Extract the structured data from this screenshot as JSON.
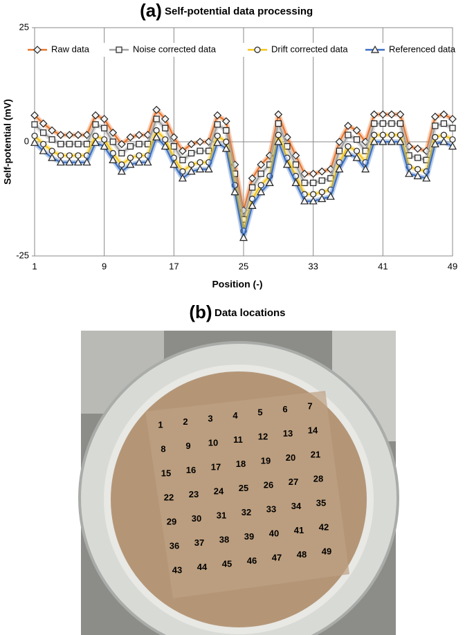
{
  "chart_data": {
    "type": "line",
    "panel_label": "(a)",
    "title": "Self-potential data processing",
    "xlabel": "Position (-)",
    "ylabel": "Self-potential (mV)",
    "x": [
      1,
      2,
      3,
      4,
      5,
      6,
      7,
      8,
      9,
      10,
      11,
      12,
      13,
      14,
      15,
      16,
      17,
      18,
      19,
      20,
      21,
      22,
      23,
      24,
      25,
      26,
      27,
      28,
      29,
      30,
      31,
      32,
      33,
      34,
      35,
      36,
      37,
      38,
      39,
      40,
      41,
      42,
      43,
      44,
      45,
      46,
      47,
      48,
      49
    ],
    "xlim": [
      1,
      49
    ],
    "xticks": [
      1,
      9,
      17,
      25,
      33,
      41,
      49
    ],
    "ylim": [
      -25,
      25
    ],
    "yticks": [
      -25,
      0,
      25
    ],
    "grid": true,
    "legend": "top",
    "series": [
      {
        "name": "Raw data",
        "color": "#e8742a",
        "marker": "diamond",
        "values": [
          5.8,
          4,
          2.5,
          1.5,
          1.5,
          1.5,
          1.5,
          5.8,
          5,
          2,
          -0.5,
          1,
          1.5,
          1.5,
          7,
          5,
          1,
          -2,
          -0.5,
          0,
          0,
          5.8,
          4.5,
          -5,
          -15,
          -8,
          -5,
          -3,
          6,
          1,
          -3,
          -7,
          -7,
          -6.5,
          -6,
          0,
          3.5,
          2.5,
          0,
          6,
          6,
          6,
          6,
          -1,
          -1.5,
          -2,
          5.5,
          6,
          5
        ]
      },
      {
        "name": "Noise corrected data",
        "color": "#a0a0a0",
        "marker": "square",
        "values": [
          3.8,
          2,
          0.5,
          -0.5,
          -0.5,
          -0.5,
          -0.5,
          3.8,
          3,
          0,
          -2.5,
          -1,
          -0.5,
          -0.5,
          5,
          3,
          -1,
          -4,
          -2.5,
          -2,
          -2,
          3.8,
          2.5,
          -7,
          -17,
          -10,
          -7,
          -5,
          4,
          -1,
          -5,
          -9,
          -9,
          -8.5,
          -8,
          -2,
          1.5,
          0.5,
          -2,
          4,
          4,
          4,
          4,
          -3,
          -3.5,
          -4,
          3.5,
          4,
          3
        ]
      },
      {
        "name": "Drift corrected data",
        "color": "#f5c518",
        "marker": "circle",
        "values": [
          1.3,
          -0.5,
          -2,
          -3,
          -3,
          -3,
          -3,
          1.3,
          0.5,
          -2.5,
          -5,
          -3.5,
          -3,
          -3,
          2.5,
          0.5,
          -3.5,
          -6.5,
          -5,
          -4.5,
          -4.5,
          1.3,
          0,
          -9.5,
          -19.5,
          -12.5,
          -9.5,
          -7.5,
          1.5,
          -3.5,
          -7.5,
          -11.5,
          -11.5,
          -11,
          -10.5,
          -4.5,
          -1,
          -2,
          -4.5,
          1.5,
          1.5,
          1.5,
          1.5,
          -5.5,
          -6,
          -6.5,
          1,
          1.5,
          0.5
        ]
      },
      {
        "name": "Referenced data",
        "color": "#3a6fc4",
        "marker": "triangle",
        "values": [
          -0.2,
          -2,
          -3.5,
          -4.5,
          -4.5,
          -4.5,
          -4.5,
          -0.2,
          -1,
          -4,
          -6.5,
          -5,
          -4.5,
          -4.5,
          1,
          -1,
          -5,
          -8,
          -6.5,
          -6,
          -6,
          -0.2,
          -1.5,
          -11,
          -21,
          -14,
          -11,
          -9,
          0,
          -5,
          -9,
          -13,
          -13,
          -12.5,
          -12,
          -6,
          -2.5,
          -3.5,
          -6,
          0,
          0,
          0,
          0,
          -7,
          -7.5,
          -8,
          -0.5,
          0,
          -1
        ]
      }
    ]
  },
  "photo": {
    "panel_label": "(b)",
    "title": "Data locations",
    "labels": [
      "1",
      "2",
      "3",
      "4",
      "5",
      "6",
      "7",
      "8",
      "9",
      "10",
      "11",
      "12",
      "13",
      "14",
      "15",
      "16",
      "17",
      "18",
      "19",
      "20",
      "21",
      "22",
      "23",
      "24",
      "25",
      "26",
      "27",
      "28",
      "29",
      "30",
      "31",
      "32",
      "33",
      "34",
      "35",
      "36",
      "37",
      "38",
      "39",
      "40",
      "41",
      "42",
      "43",
      "44",
      "45",
      "46",
      "47",
      "48",
      "49"
    ]
  }
}
